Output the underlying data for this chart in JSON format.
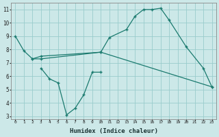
{
  "background_color": "#cce8e8",
  "grid_color": "#99cccc",
  "line_color": "#1a7a6e",
  "xlabel": "Humidex (Indice chaleur)",
  "xlim": [
    -0.5,
    23.5
  ],
  "ylim": [
    2.8,
    11.5
  ],
  "series": [
    {
      "x": [
        0,
        1,
        2,
        3,
        10,
        11,
        13,
        14,
        15,
        16,
        17,
        18,
        20,
        22,
        23
      ],
      "y": [
        9.0,
        7.9,
        7.3,
        7.3,
        7.8,
        8.9,
        9.5,
        10.5,
        11.0,
        11.0,
        11.1,
        10.2,
        8.2,
        6.6,
        5.2
      ]
    },
    {
      "x": [
        2,
        3,
        10,
        23
      ],
      "y": [
        7.3,
        7.5,
        7.8,
        5.2
      ]
    },
    {
      "x": [
        3,
        4,
        5,
        6,
        7,
        8,
        9,
        10
      ],
      "y": [
        6.6,
        5.8,
        5.5,
        3.1,
        3.6,
        4.6,
        6.3,
        6.3
      ]
    }
  ],
  "xticks": [
    0,
    1,
    2,
    3,
    4,
    5,
    6,
    7,
    8,
    9,
    10,
    11,
    12,
    13,
    14,
    15,
    16,
    17,
    18,
    19,
    20,
    21,
    22,
    23
  ],
  "yticks": [
    3,
    4,
    5,
    6,
    7,
    8,
    9,
    10,
    11
  ]
}
